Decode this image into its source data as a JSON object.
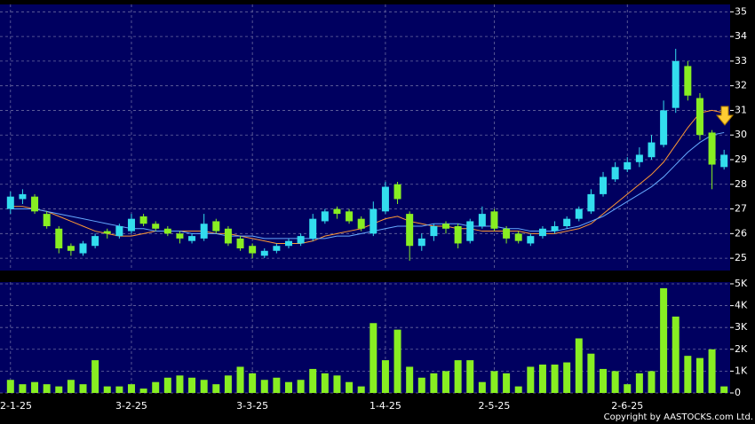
{
  "chart_data": {
    "type": "candlestick",
    "categories": [
      "2-1-25",
      null,
      null,
      null,
      null,
      null,
      null,
      null,
      null,
      null,
      "3-2-25",
      null,
      null,
      null,
      null,
      null,
      null,
      null,
      null,
      null,
      "3-3-25",
      null,
      null,
      null,
      null,
      null,
      null,
      null,
      null,
      null,
      null,
      "1-4-25",
      null,
      null,
      null,
      null,
      null,
      null,
      null,
      null,
      "2-5-25",
      null,
      null,
      null,
      null,
      null,
      null,
      null,
      null,
      null,
      null,
      "2-6-25",
      null,
      null,
      null,
      null,
      null,
      null,
      null,
      null
    ],
    "open": [
      27.0,
      27.4,
      27.5,
      26.8,
      26.2,
      25.5,
      25.2,
      25.5,
      26.1,
      25.9,
      26.1,
      26.7,
      26.4,
      26.2,
      26.0,
      25.7,
      25.8,
      26.5,
      26.2,
      25.8,
      25.5,
      25.1,
      25.3,
      25.5,
      25.6,
      25.8,
      26.5,
      27.0,
      26.9,
      26.6,
      26.0,
      26.9,
      28.0,
      26.8,
      25.5,
      25.9,
      26.4,
      26.3,
      25.7,
      26.3,
      26.9,
      26.2,
      26.0,
      25.6,
      25.9,
      26.1,
      26.3,
      26.6,
      26.9,
      27.6,
      28.2,
      28.6,
      28.9,
      29.1,
      29.6,
      31.1,
      32.8,
      31.5,
      30.1,
      28.7
    ],
    "high": [
      27.7,
      27.8,
      27.6,
      26.9,
      26.3,
      25.6,
      25.7,
      26.0,
      26.2,
      26.4,
      26.8,
      26.8,
      26.5,
      26.3,
      26.1,
      26.0,
      26.8,
      26.6,
      26.3,
      25.9,
      25.6,
      25.4,
      25.6,
      25.8,
      26.0,
      26.8,
      27.0,
      27.1,
      27.0,
      26.7,
      27.3,
      28.1,
      28.1,
      26.9,
      26.0,
      26.4,
      26.5,
      26.4,
      26.6,
      27.1,
      27.0,
      26.3,
      26.1,
      26.0,
      26.3,
      26.5,
      26.7,
      27.1,
      27.8,
      28.5,
      28.9,
      29.1,
      29.5,
      30.0,
      31.4,
      33.5,
      33.0,
      31.7,
      30.2,
      29.4
    ],
    "low": [
      26.8,
      27.2,
      26.8,
      26.2,
      25.2,
      25.1,
      25.1,
      25.4,
      25.8,
      25.8,
      26.0,
      26.3,
      26.1,
      25.9,
      25.6,
      25.6,
      25.7,
      26.0,
      25.5,
      25.3,
      25.0,
      25.0,
      25.2,
      25.4,
      25.5,
      25.7,
      26.4,
      26.6,
      26.4,
      26.1,
      25.9,
      26.8,
      27.2,
      24.9,
      25.3,
      25.7,
      26.0,
      25.4,
      25.6,
      26.2,
      26.1,
      25.6,
      25.6,
      25.5,
      25.8,
      26.0,
      26.2,
      26.5,
      26.8,
      27.5,
      28.1,
      28.5,
      28.7,
      29.0,
      29.5,
      30.9,
      31.4,
      29.8,
      27.8,
      28.6
    ],
    "close": [
      27.5,
      27.6,
      26.9,
      26.3,
      25.4,
      25.3,
      25.6,
      25.9,
      26.0,
      26.3,
      26.6,
      26.4,
      26.2,
      26.0,
      25.8,
      25.9,
      26.4,
      26.1,
      25.6,
      25.4,
      25.2,
      25.3,
      25.5,
      25.7,
      25.9,
      26.6,
      26.9,
      26.8,
      26.5,
      26.2,
      27.0,
      27.9,
      27.4,
      25.5,
      25.8,
      26.3,
      26.2,
      25.6,
      26.5,
      26.8,
      26.2,
      25.8,
      25.7,
      25.9,
      26.2,
      26.3,
      26.6,
      27.0,
      27.6,
      28.3,
      28.7,
      28.9,
      29.2,
      29.7,
      31.0,
      33.0,
      31.6,
      30.0,
      28.8,
      29.2
    ],
    "up_color": "#33ddee",
    "down_color": "#88ee22",
    "moving_averages": [
      {
        "color": "#ff9933",
        "values": [
          27.1,
          27.1,
          27.0,
          26.9,
          26.7,
          26.5,
          26.3,
          26.1,
          26.0,
          25.9,
          25.9,
          26.0,
          26.1,
          26.1,
          26.1,
          26.1,
          26.1,
          26.0,
          26.0,
          25.9,
          25.8,
          25.7,
          25.6,
          25.6,
          25.6,
          25.7,
          25.9,
          26.0,
          26.1,
          26.2,
          26.4,
          26.6,
          26.7,
          26.5,
          26.4,
          26.3,
          26.3,
          26.2,
          26.2,
          26.1,
          26.1,
          26.1,
          26.1,
          26.0,
          26.0,
          26.0,
          26.1,
          26.2,
          26.4,
          26.8,
          27.2,
          27.6,
          28.0,
          28.4,
          28.9,
          29.6,
          30.3,
          30.9,
          31.0,
          30.9
        ]
      },
      {
        "color": "#66aaff",
        "values": [
          27.0,
          27.0,
          27.0,
          26.9,
          26.8,
          26.7,
          26.6,
          26.5,
          26.4,
          26.3,
          26.2,
          26.2,
          26.1,
          26.1,
          26.1,
          26.0,
          26.0,
          26.0,
          25.9,
          25.9,
          25.9,
          25.8,
          25.8,
          25.8,
          25.8,
          25.8,
          25.8,
          25.9,
          25.9,
          26.0,
          26.1,
          26.2,
          26.3,
          26.3,
          26.3,
          26.4,
          26.4,
          26.4,
          26.3,
          26.3,
          26.3,
          26.2,
          26.2,
          26.1,
          26.1,
          26.1,
          26.2,
          26.3,
          26.5,
          26.7,
          27.0,
          27.3,
          27.6,
          27.9,
          28.3,
          28.8,
          29.3,
          29.7,
          30.0,
          30.1
        ]
      }
    ],
    "ylim": [
      24.5,
      35.3
    ],
    "yticks": [
      25,
      26,
      27,
      28,
      29,
      30,
      31,
      32,
      33,
      34,
      35
    ],
    "volume": [
      0.6,
      0.4,
      0.5,
      0.4,
      0.3,
      0.6,
      0.4,
      1.5,
      0.3,
      0.3,
      0.4,
      0.2,
      0.5,
      0.7,
      0.8,
      0.7,
      0.6,
      0.4,
      0.8,
      1.2,
      0.9,
      0.6,
      0.7,
      0.5,
      0.6,
      1.1,
      0.9,
      0.8,
      0.5,
      0.3,
      3.2,
      1.5,
      2.9,
      1.2,
      0.7,
      0.9,
      1.0,
      1.5,
      1.5,
      0.5,
      1.0,
      0.9,
      0.3,
      1.2,
      1.3,
      1.3,
      1.4,
      2.5,
      1.8,
      1.1,
      1.0,
      0.4,
      0.9,
      1.0,
      4.8,
      3.5,
      1.7,
      1.6,
      2.0,
      0.3
    ],
    "volume_color": "#88ee22",
    "volume_lim": [
      0,
      5.08
    ],
    "volume_ticks": [
      0,
      {
        "value": 1,
        "label": "1K"
      },
      {
        "value": 2,
        "label": "2K"
      },
      {
        "value": 3,
        "label": "3K"
      },
      {
        "value": 4,
        "label": "4K"
      },
      {
        "value": 5,
        "label": "5K"
      }
    ],
    "grid": true,
    "copyright": "Copyright by AASTOCKS.com Ltd."
  }
}
